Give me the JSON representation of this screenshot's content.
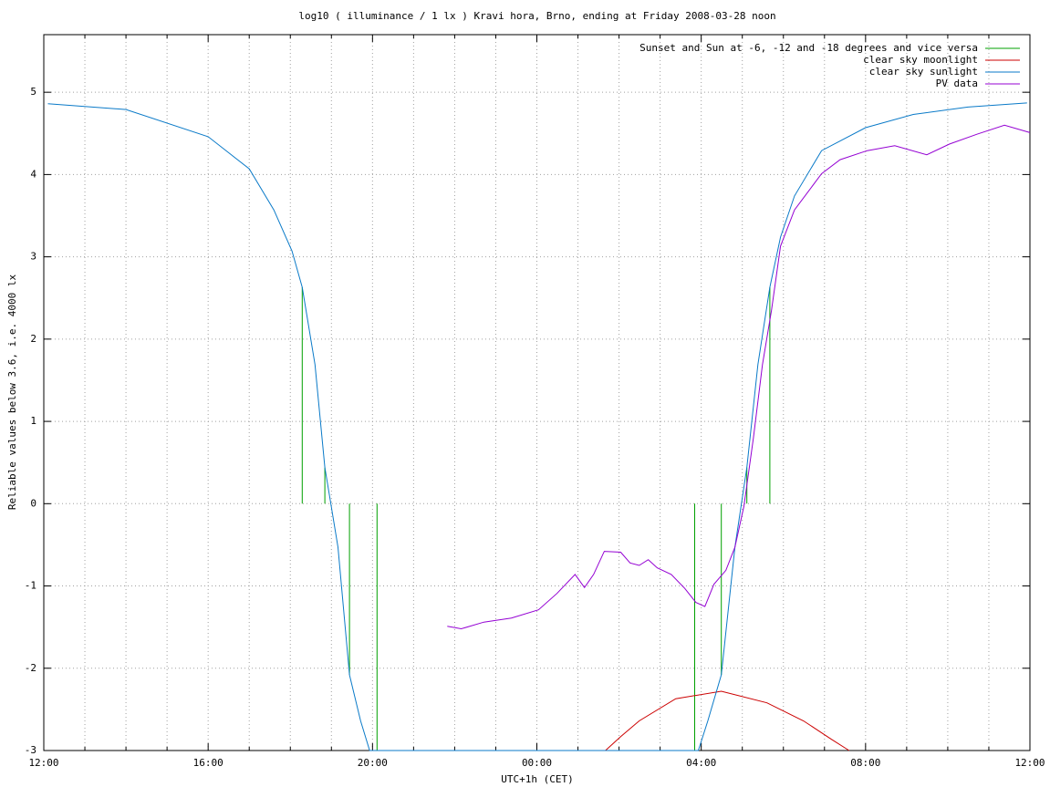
{
  "chart_data": {
    "type": "line",
    "title": "log10 ( illuminance / 1 lx ) Kravi hora, Brno, ending at Friday 2008-03-28 noon",
    "xlabel": "UTC+1h (CET)",
    "ylabel": "Reliable values below 3.6, i.e. 4000 lx",
    "xlim": [
      0,
      24
    ],
    "xticks": [
      {
        "value": 0,
        "label": "12:00"
      },
      {
        "value": 4,
        "label": "16:00"
      },
      {
        "value": 8,
        "label": "20:00"
      },
      {
        "value": 12,
        "label": "00:00"
      },
      {
        "value": 16,
        "label": "04:00"
      },
      {
        "value": 20,
        "label": "08:00"
      },
      {
        "value": 24,
        "label": "12:00"
      }
    ],
    "xminorticks": [
      1,
      2,
      3,
      5,
      6,
      7,
      9,
      10,
      11,
      13,
      14,
      15,
      17,
      18,
      19,
      21,
      22,
      23
    ],
    "ylim": [
      -3,
      5.7
    ],
    "yticks": [
      -3,
      -2,
      -1,
      0,
      1,
      2,
      3,
      4,
      5
    ],
    "grid": true,
    "legend": "top-right",
    "series": [
      {
        "name": "Sunset and Sun at -6, -12 and -18 degrees and vice versa",
        "color": "#00a000",
        "x": [
          6.29,
          6.29,
          6.29,
          6.84,
          6.84,
          6.84,
          7.44,
          7.44,
          7.44,
          8.11,
          8.11,
          8.11,
          15.84,
          15.84,
          15.84,
          16.49,
          16.49,
          16.49,
          17.11,
          17.11,
          17.11,
          17.67,
          17.67
        ],
        "values": [
          0,
          2.63,
          null,
          0,
          0.44,
          null,
          0,
          -2.08,
          null,
          0,
          -3,
          null,
          0,
          -3,
          null,
          0,
          -2.08,
          null,
          0,
          0.44,
          null,
          0,
          2.63
        ]
      },
      {
        "name": "clear sky moonlight",
        "color": "#cc0000",
        "x": [
          13.67,
          14.04,
          14.49,
          15.38,
          16.49,
          17.6,
          18.49,
          19.16,
          19.6
        ],
        "values": [
          -3,
          -2.83,
          -2.64,
          -2.37,
          -2.28,
          -2.42,
          -2.64,
          -2.86,
          -3
        ]
      },
      {
        "name": "clear sky sunlight",
        "color": "#0a7ac8",
        "x": [
          0.1,
          2,
          4,
          5,
          5.6,
          6.04,
          6.29,
          6.6,
          6.84,
          7.16,
          7.44,
          7.71,
          7.93,
          15.93,
          16.16,
          16.49,
          16.82,
          17.11,
          17.38,
          17.67,
          17.93,
          18.27,
          18.93,
          20,
          21.16,
          22.49,
          23.93
        ],
        "values": [
          4.86,
          4.79,
          4.46,
          4.07,
          3.57,
          3.07,
          2.63,
          1.69,
          0.44,
          -0.53,
          -2.08,
          -2.64,
          -3,
          -3,
          -2.64,
          -2.08,
          -0.53,
          0.44,
          1.69,
          2.63,
          3.24,
          3.74,
          4.29,
          4.57,
          4.73,
          4.82,
          4.87
        ]
      },
      {
        "name": "PV data",
        "color": "#9400d3",
        "x": [
          9.82,
          10.16,
          10.71,
          11.38,
          12.04,
          12.49,
          12.93,
          13.16,
          13.38,
          13.64,
          14.04,
          14.27,
          14.49,
          14.71,
          14.93,
          15.27,
          15.6,
          15.87,
          16.09,
          16.31,
          16.6,
          16.82,
          17.04,
          17.27,
          17.49,
          17.71,
          17.93,
          18.27,
          18.6,
          18.93,
          19.38,
          20.04,
          20.71,
          21.49,
          22.04,
          22.71,
          23.38,
          24
        ],
        "values": [
          -1.49,
          -1.52,
          -1.44,
          -1.39,
          -1.29,
          -1.09,
          -0.86,
          -1.02,
          -0.86,
          -0.58,
          -0.59,
          -0.72,
          -0.75,
          -0.68,
          -0.78,
          -0.86,
          -1.03,
          -1.2,
          -1.25,
          -0.98,
          -0.81,
          -0.53,
          -0.03,
          0.8,
          1.69,
          2.35,
          3.13,
          3.57,
          3.79,
          4.01,
          4.18,
          4.29,
          4.35,
          4.24,
          4.37,
          4.49,
          4.6,
          4.51
        ]
      }
    ]
  }
}
